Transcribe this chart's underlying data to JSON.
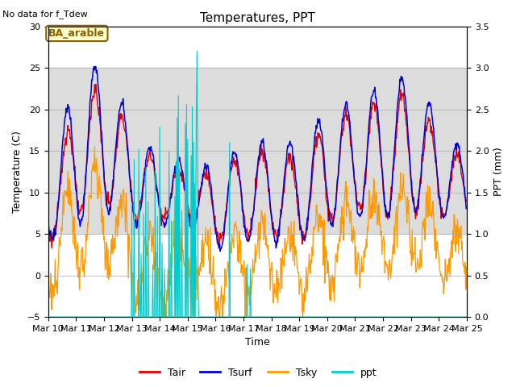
{
  "title": "Temperatures, PPT",
  "subtitle": "No data for f_Tdew",
  "annotation": "BA_arable",
  "xlabel": "Time",
  "ylabel_left": "Temperature (C)",
  "ylabel_right": "PPT (mm)",
  "ylim_left": [
    -5,
    30
  ],
  "ylim_right": [
    0.0,
    3.5
  ],
  "xlim": [
    0,
    360
  ],
  "x_ticks": [
    0,
    24,
    48,
    72,
    96,
    120,
    144,
    168,
    192,
    216,
    240,
    264,
    288,
    312,
    336,
    360
  ],
  "x_tick_labels": [
    "Mar 10",
    "Mar 11",
    "Mar 12",
    "Mar 13",
    "Mar 14",
    "Mar 15",
    "Mar 16",
    "Mar 17",
    "Mar 18",
    "Mar 19",
    "Mar 20",
    "Mar 21",
    "Mar 22",
    "Mar 23",
    "Mar 24",
    "Mar 25"
  ],
  "shaded_band": [
    5,
    25
  ],
  "colors": {
    "Tair": "#dd0000",
    "Tsurf": "#0000dd",
    "Tsky": "#ff9900",
    "ppt": "#00cccc",
    "shading": "#dcdcdc"
  },
  "background_color": "#ffffff",
  "figsize": [
    6.4,
    4.8
  ],
  "dpi": 100
}
